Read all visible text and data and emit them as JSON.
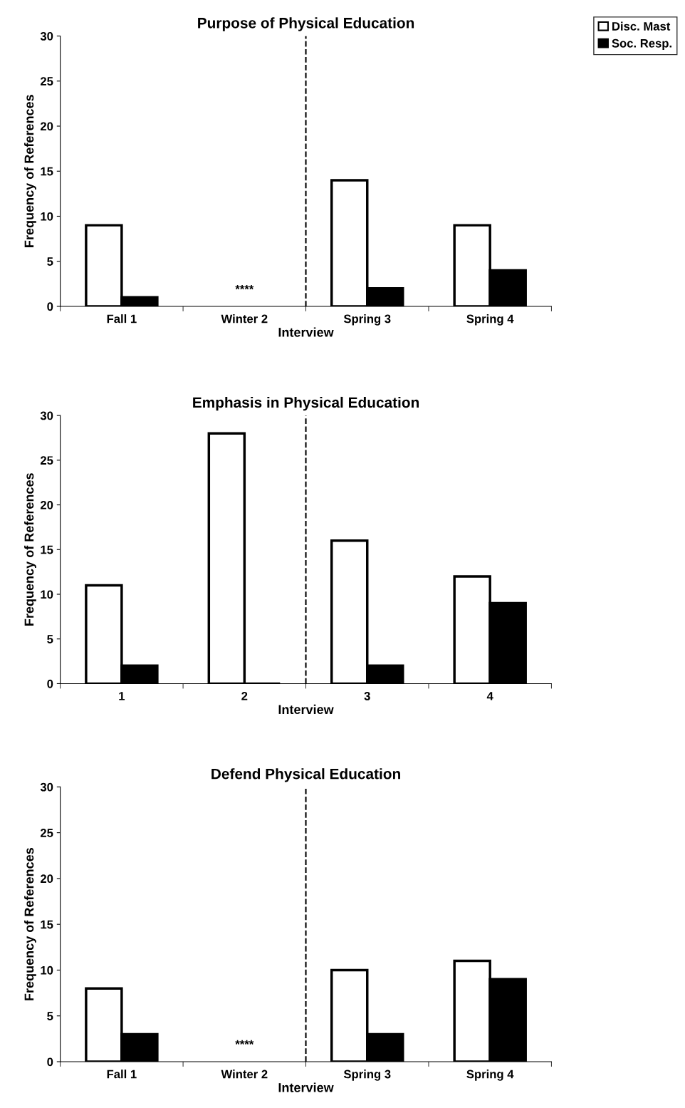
{
  "chart_data": [
    {
      "type": "bar",
      "title": "Purpose of Physical Education",
      "xlabel": "Interview",
      "ylabel": "Frequency of References",
      "categories": [
        "Fall 1",
        "Winter 2",
        "Spring 3",
        "Spring 4"
      ],
      "series": [
        {
          "name": "Disc. Mast",
          "color": "#ffffff",
          "values": [
            9,
            null,
            14,
            9
          ]
        },
        {
          "name": "Soc. Resp.",
          "color": "#000000",
          "values": [
            1,
            null,
            2,
            4
          ]
        }
      ],
      "ylim": [
        0,
        30
      ],
      "yticks": [
        0,
        5,
        10,
        15,
        20,
        25,
        30
      ],
      "grid": false,
      "legend": "top right",
      "annotations": [
        "****"
      ]
    },
    {
      "type": "bar",
      "title": "Emphasis in Physical Education",
      "xlabel": "Interview",
      "ylabel": "Frequency of References",
      "categories": [
        "1",
        "2",
        "3",
        "4"
      ],
      "series": [
        {
          "color": "#ffffff",
          "values": [
            11,
            28,
            16,
            12
          ]
        },
        {
          "color": "#000000",
          "values": [
            2,
            0,
            2,
            9
          ]
        }
      ],
      "ylim": [
        0,
        30
      ],
      "yticks": [
        0,
        5,
        10,
        15,
        20,
        25,
        30
      ],
      "grid": false
    },
    {
      "type": "bar",
      "title": "Defend Physical Education",
      "xlabel": "Interview",
      "ylabel": "Frequency of References",
      "categories": [
        "Fall 1",
        "Winter 2",
        "Spring 3",
        "Spring 4"
      ],
      "series": [
        {
          "color": "#ffffff",
          "values": [
            8,
            null,
            10,
            11
          ]
        },
        {
          "color": "#000000",
          "values": [
            3,
            null,
            3,
            9
          ]
        }
      ],
      "ylim": [
        0,
        30
      ],
      "yticks": [
        0,
        5,
        10,
        15,
        20,
        25,
        30
      ],
      "grid": false,
      "annotations": [
        "****"
      ]
    }
  ]
}
